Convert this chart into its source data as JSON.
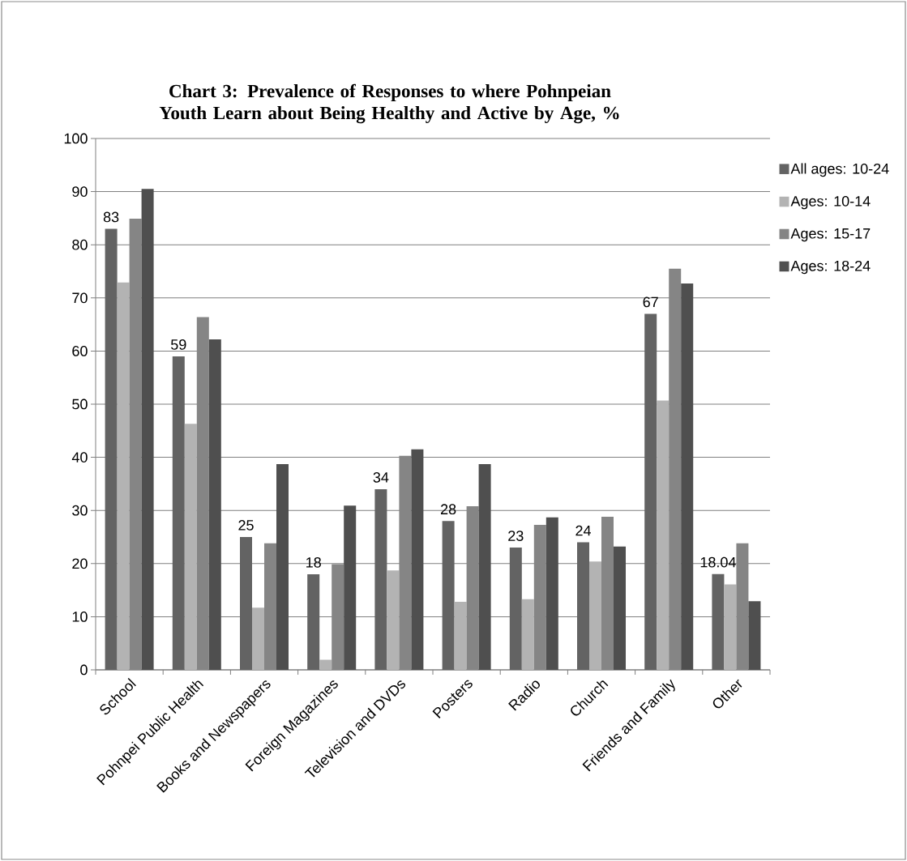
{
  "chart_data": {
    "type": "bar",
    "title": "Chart 3: Prevalence of Responses to where Pohnpeian Youth Learn about Being Healthy and Active by Age, %",
    "categories": [
      "School",
      "Pohnpei Public Health",
      "Books and Newspapers",
      "Foreign Magazines",
      "Television and DVDs",
      "Posters",
      "Radio",
      "Church",
      "Friends and Family",
      "Other"
    ],
    "series": [
      {
        "name": "All ages: 10-24",
        "color": "#636363",
        "values": [
          83,
          59,
          25,
          18,
          34,
          28,
          23,
          24,
          67,
          18.04
        ],
        "value_labels": [
          "83",
          "59",
          "25",
          "18",
          "34",
          "28",
          "23",
          "24",
          "67",
          "18.04"
        ]
      },
      {
        "name": "Ages: 10-14",
        "color": "#b3b3b3",
        "values": [
          72.9,
          46.3,
          11.7,
          1.9,
          18.7,
          12.8,
          13.3,
          20.4,
          50.7,
          16.1
        ]
      },
      {
        "name": "Ages: 15-17",
        "color": "#858585",
        "values": [
          84.9,
          66.4,
          23.8,
          19.9,
          40.3,
          30.8,
          27.3,
          28.8,
          75.5,
          23.8
        ]
      },
      {
        "name": "Ages: 18-24",
        "color": "#4f4f4f",
        "values": [
          90.5,
          62.2,
          38.7,
          30.9,
          41.5,
          38.7,
          28.7,
          23.2,
          72.7,
          12.9
        ]
      }
    ],
    "ylim": [
      0,
      100
    ],
    "yticks": [
      0,
      10,
      20,
      30,
      40,
      50,
      60,
      70,
      80,
      90,
      100
    ],
    "grid": "y",
    "legend": "right"
  }
}
